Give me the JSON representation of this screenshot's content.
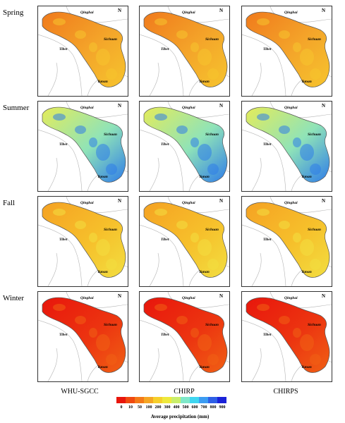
{
  "seasons": [
    "Spring",
    "Summer",
    "Fall",
    "Winter"
  ],
  "products": [
    "WHU-SGCC",
    "CHIRP",
    "CHIRPS"
  ],
  "provinces": {
    "qinghai": "Qinghai",
    "sichuan": "Sichuan",
    "tibet": "Tibet",
    "yunan": "Yunan"
  },
  "north_arrow": "N",
  "legend": {
    "title": "Average precipitation (mm)",
    "breaks": [
      "0",
      "10",
      "50",
      "100",
      "200",
      "300",
      "400",
      "500",
      "600",
      "700",
      "800",
      "900"
    ],
    "colors": [
      "#e8160c",
      "#f04a10",
      "#f47a18",
      "#f5a623",
      "#f6cf2b",
      "#eee93c",
      "#c9ee6a",
      "#7fe8c9",
      "#3fd6f0",
      "#3c9cf2",
      "#2e5fe6",
      "#1a22d8"
    ]
  },
  "season_colors": {
    "Spring": {
      "west": "#f07a1c",
      "mid": "#f4a62a",
      "east": "#f6c42d"
    },
    "Summer": {
      "west": "#e4ec5a",
      "mid": "#8fe3b8",
      "east": "#2f7de8"
    },
    "Fall": {
      "west": "#f5a223",
      "mid": "#f6c02b",
      "east": "#f2de40"
    },
    "Winter": {
      "west": "#e8160c",
      "mid": "#ec3410",
      "east": "#f06014"
    }
  }
}
